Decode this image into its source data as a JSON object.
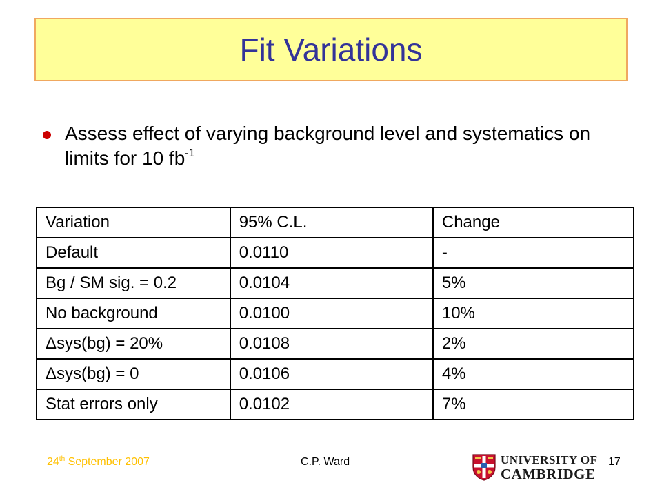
{
  "slide": {
    "title": "Fit Variations",
    "bullet": {
      "icon": "bullet-dot-icon",
      "color": "#cc0000",
      "text": "Assess effect of varying background level and systematics on limits for 10 fb",
      "superscript": "-1"
    }
  },
  "table": {
    "headers": [
      "Variation",
      "95% C.L.",
      "Change"
    ],
    "rows": [
      [
        "Default",
        "0.0110",
        "-"
      ],
      [
        "Bg / SM sig. = 0.2",
        "0.0104",
        "5%"
      ],
      [
        "No background",
        "0.0100",
        "10%"
      ],
      [
        "Δsys(bg) = 20%",
        "0.0108",
        "2%"
      ],
      [
        "Δsys(bg) = 0",
        "0.0106",
        "4%"
      ],
      [
        "Stat errors only",
        "0.0102",
        "7%"
      ]
    ]
  },
  "footer": {
    "date_day": "24",
    "date_suffix": "th",
    "date_rest": " September 2007",
    "author": "C.P. Ward",
    "page_number": "17",
    "logo_line1": "UNIVERSITY OF",
    "logo_line2": "CAMBRIDGE",
    "logo_icon": "university-crest-icon"
  },
  "colors": {
    "title_background": "#ffff99",
    "title_border": "#f0a860",
    "title_text": "#333399",
    "footer_date": "#ffc000"
  }
}
